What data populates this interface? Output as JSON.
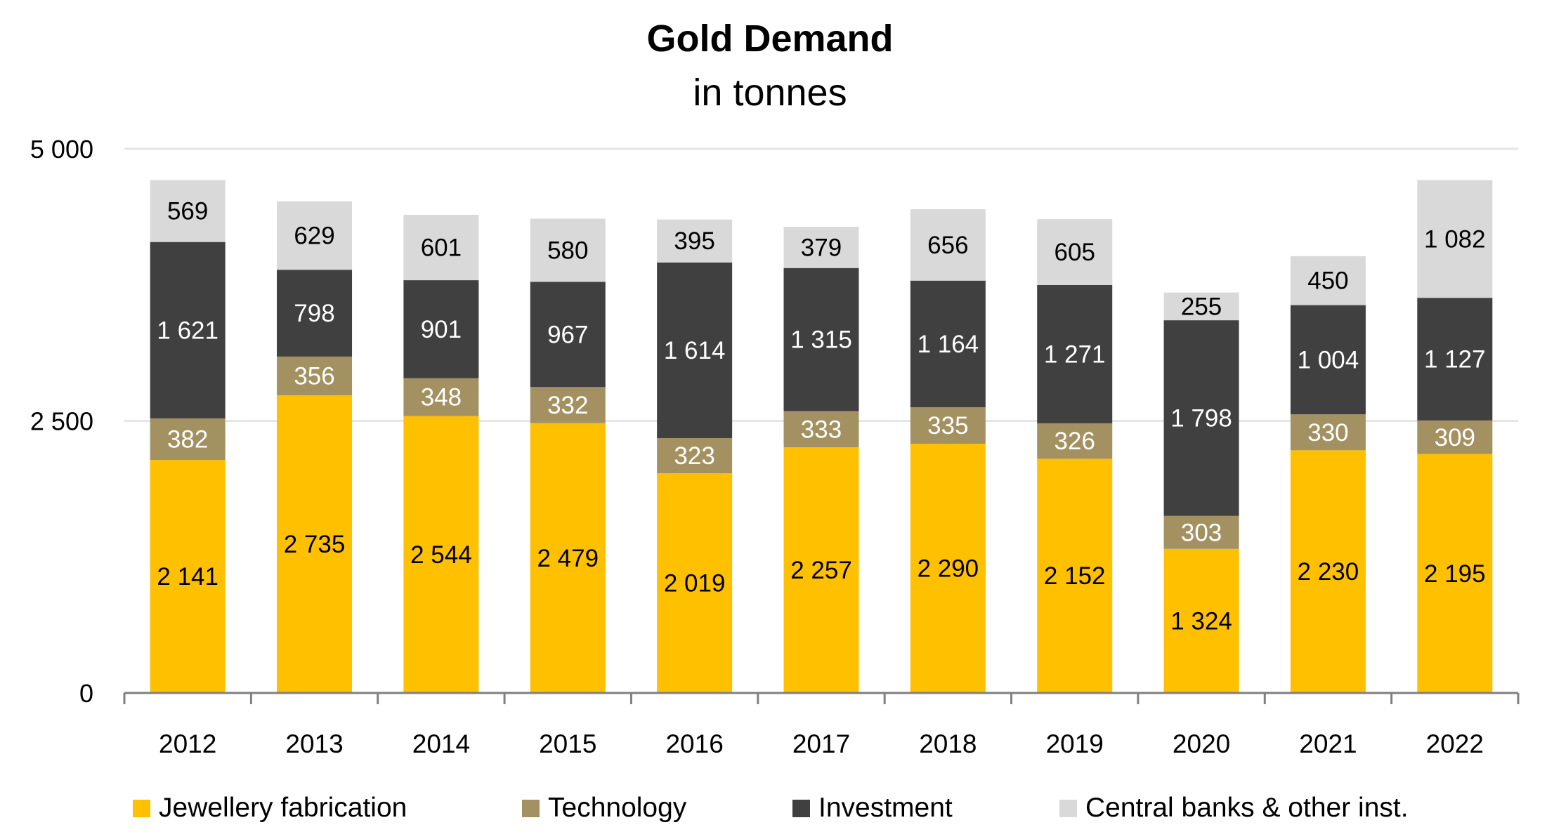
{
  "chart_data": {
    "type": "bar",
    "stacked": true,
    "title": "Gold Demand",
    "subtitle": "in tonnes",
    "xlabel": "",
    "ylabel": "",
    "ylim": [
      0,
      5000
    ],
    "yticks": [
      0,
      2500,
      5000
    ],
    "ytick_labels": [
      "0",
      "2 500",
      "5 000"
    ],
    "grid": true,
    "legend_position": "bottom",
    "categories": [
      "2012",
      "2013",
      "2014",
      "2015",
      "2016",
      "2017",
      "2018",
      "2019",
      "2020",
      "2021",
      "2022"
    ],
    "series": [
      {
        "name": "Jewellery fabrication",
        "color": "#FFC000",
        "label_color": "#000000",
        "values": [
          2141,
          2735,
          2544,
          2479,
          2019,
          2257,
          2290,
          2152,
          1324,
          2230,
          2195
        ],
        "labels": [
          "2 141",
          "2 735",
          "2 544",
          "2 479",
          "2 019",
          "2 257",
          "2 290",
          "2 152",
          "1 324",
          "2 230",
          "2 195"
        ]
      },
      {
        "name": "Technology",
        "color": "#A39161",
        "label_color": "#FFFFFF",
        "values": [
          382,
          356,
          348,
          332,
          323,
          333,
          335,
          326,
          303,
          330,
          309
        ],
        "labels": [
          "382",
          "356",
          "348",
          "332",
          "323",
          "333",
          "335",
          "326",
          "303",
          "330",
          "309"
        ]
      },
      {
        "name": "Investment",
        "color": "#404040",
        "label_color": "#FFFFFF",
        "values": [
          1621,
          798,
          901,
          967,
          1614,
          1315,
          1164,
          1271,
          1798,
          1004,
          1127
        ],
        "labels": [
          "1 621",
          "798",
          "901",
          "967",
          "1 614",
          "1 315",
          "1 164",
          "1 271",
          "1 798",
          "1 004",
          "1 127"
        ]
      },
      {
        "name": "Central banks & other inst.",
        "color": "#D9D9D9",
        "label_color": "#000000",
        "values": [
          569,
          629,
          601,
          580,
          395,
          379,
          656,
          605,
          255,
          450,
          1082
        ],
        "labels": [
          "569",
          "629",
          "601",
          "580",
          "395",
          "379",
          "656",
          "605",
          "255",
          "450",
          "1 082"
        ]
      }
    ],
    "colors": {
      "gridline": "#E6E6E6",
      "axis": "#808080",
      "text": "#000000"
    }
  }
}
